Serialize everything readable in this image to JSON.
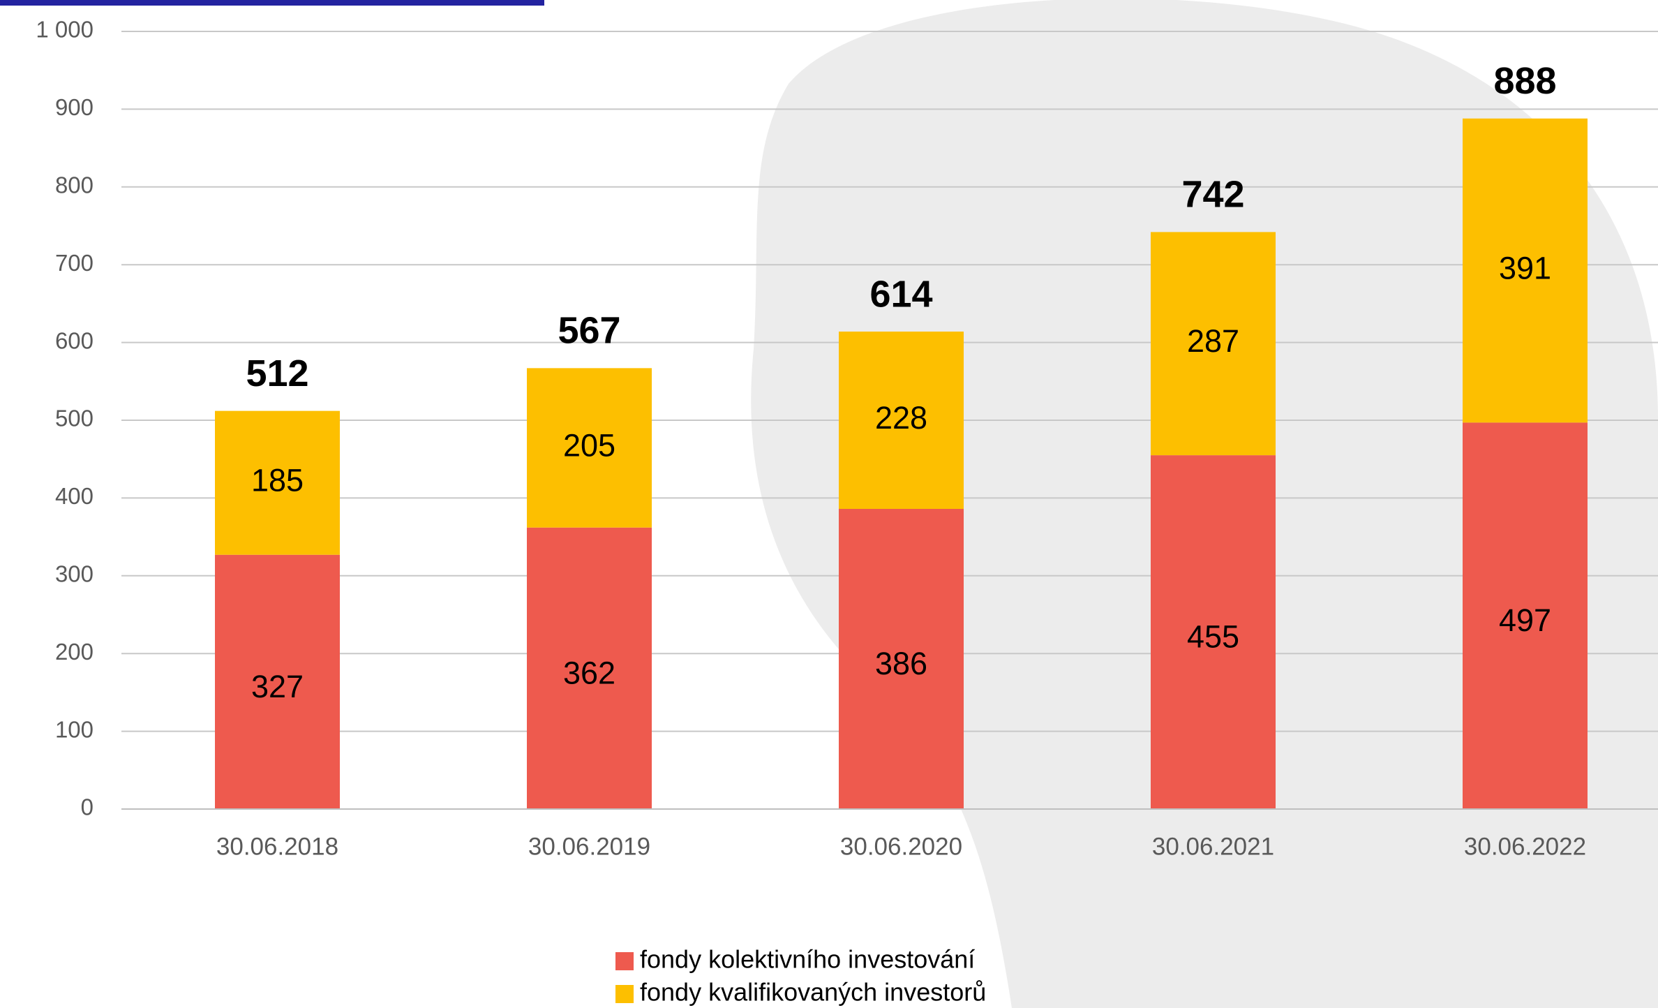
{
  "chart_data": {
    "type": "stacked-bar",
    "categories": [
      "30.06.2018",
      "30.06.2019",
      "30.06.2020",
      "30.06.2021",
      "30.06.2022"
    ],
    "series": [
      {
        "name": "fondy kolektivního investování",
        "color": "#ee5a4e",
        "values": [
          327,
          362,
          386,
          455,
          497
        ]
      },
      {
        "name": "fondy kvalifikovaných investorů",
        "color": "#fdbf00",
        "values": [
          185,
          205,
          228,
          287,
          391
        ]
      }
    ],
    "totals": [
      512,
      567,
      614,
      742,
      888
    ],
    "ylim": [
      0,
      1000
    ],
    "yticks": [
      0,
      100,
      200,
      300,
      400,
      500,
      600,
      700,
      800,
      900,
      {
        "value": 1000,
        "label": "1 000"
      }
    ],
    "grid": true,
    "legend": "bottom"
  }
}
